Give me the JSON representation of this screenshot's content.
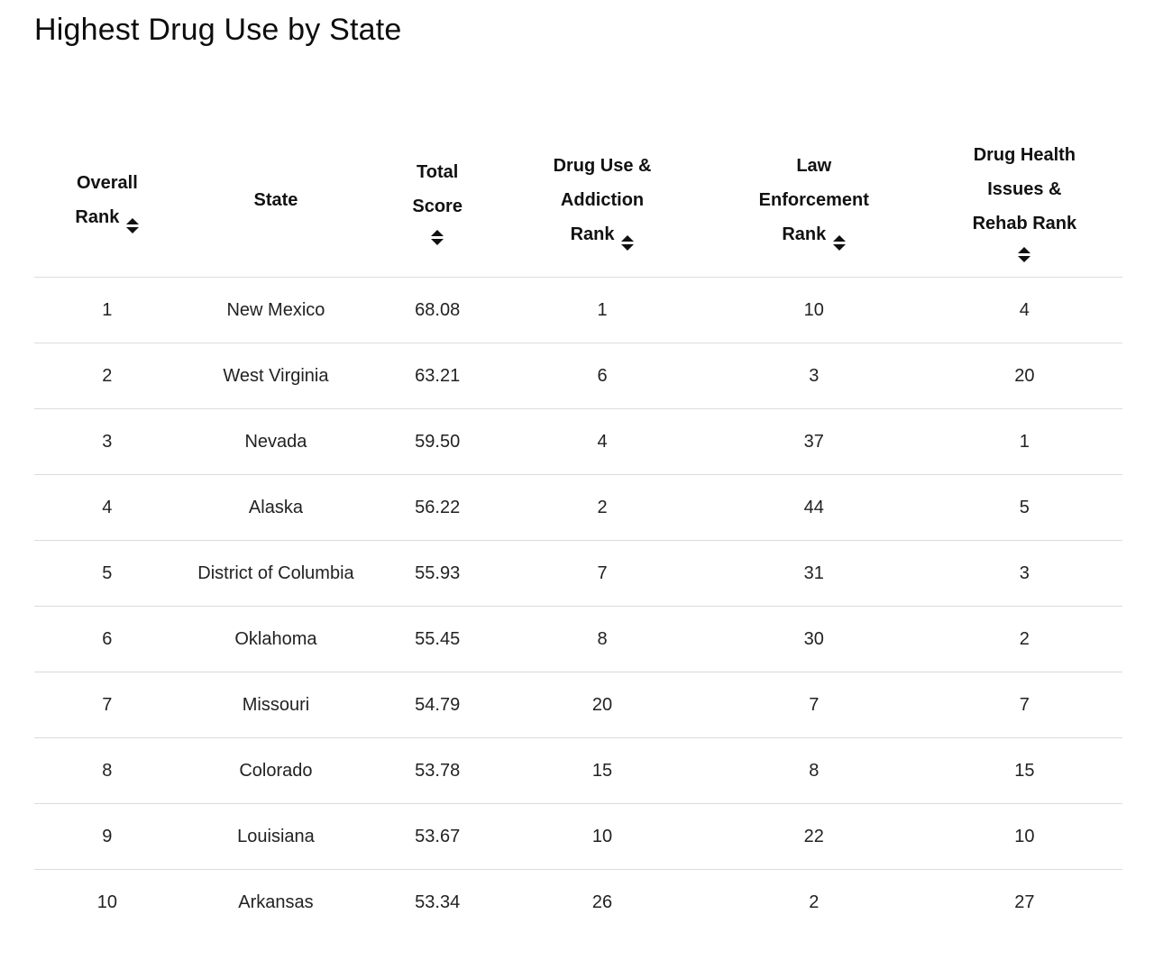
{
  "title": "Highest Drug Use by State",
  "colors": {
    "background": "#ffffff",
    "title_text": "#0d0d0d",
    "header_text": "#111111",
    "body_text": "#222222",
    "divider": "#dcdcdc"
  },
  "table": {
    "columns": [
      {
        "id": "overall-rank",
        "label": "Overall\nRank",
        "sortable": true,
        "icon_position": "inline",
        "width_pct": "13.4%"
      },
      {
        "id": "state",
        "label": "State",
        "sortable": false,
        "icon_position": "none",
        "width_pct": "17.6%"
      },
      {
        "id": "total-score",
        "label": "Total\nScore",
        "sortable": true,
        "icon_position": "below",
        "width_pct": "12.1%"
      },
      {
        "id": "drug-use-rank",
        "label": "Drug Use &\nAddiction\nRank",
        "sortable": true,
        "icon_position": "inline",
        "width_pct": "18.2%"
      },
      {
        "id": "law-rank",
        "label": "Law\nEnforcement\nRank",
        "sortable": true,
        "icon_position": "inline",
        "width_pct": "20.7%"
      },
      {
        "id": "health-rank",
        "label": "Drug Health\nIssues &\nRehab Rank",
        "sortable": true,
        "icon_position": "below",
        "width_pct": "18.0%"
      }
    ],
    "sort_icon_name": "sort-asc-desc-icon"
  },
  "chart_data": {
    "type": "table",
    "title": "Highest Drug Use by State",
    "columns": [
      "Overall Rank",
      "State",
      "Total Score",
      "Drug Use & Addiction Rank",
      "Law Enforcement Rank",
      "Drug Health Issues & Rehab Rank"
    ],
    "rows": [
      [
        "1",
        "New Mexico",
        "68.08",
        "1",
        "10",
        "4"
      ],
      [
        "2",
        "West Virginia",
        "63.21",
        "6",
        "3",
        "20"
      ],
      [
        "3",
        "Nevada",
        "59.50",
        "4",
        "37",
        "1"
      ],
      [
        "4",
        "Alaska",
        "56.22",
        "2",
        "44",
        "5"
      ],
      [
        "5",
        "District of Columbia",
        "55.93",
        "7",
        "31",
        "3"
      ],
      [
        "6",
        "Oklahoma",
        "55.45",
        "8",
        "30",
        "2"
      ],
      [
        "7",
        "Missouri",
        "54.79",
        "20",
        "7",
        "7"
      ],
      [
        "8",
        "Colorado",
        "53.78",
        "15",
        "8",
        "15"
      ],
      [
        "9",
        "Louisiana",
        "53.67",
        "10",
        "22",
        "10"
      ],
      [
        "10",
        "Arkansas",
        "53.34",
        "26",
        "2",
        "27"
      ]
    ]
  }
}
